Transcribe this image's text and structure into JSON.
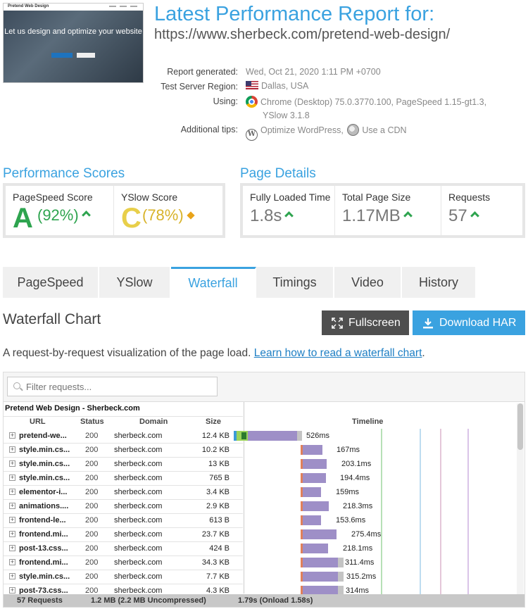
{
  "header": {
    "thumbnail": {
      "site_name": "Pretend Web Design",
      "headline": "Let us design and optimize your website"
    },
    "title": "Latest Performance Report for:",
    "url": "https://www.sherbeck.com/pretend-web-design/"
  },
  "meta": {
    "report_generated_label": "Report generated:",
    "report_generated_value": "Wed, Oct 21, 2020 1:11 PM +0700",
    "server_region_label": "Test Server Region:",
    "server_region_value": "Dallas, USA",
    "using_label": "Using:",
    "using_line1": "Chrome (Desktop) 75.0.3770.100, PageSpeed 1.15-gt1.3,",
    "using_line2": "YSlow 3.1.8",
    "tips_label": "Additional tips:",
    "tip1": "Optimize WordPress,",
    "tip2": "Use a CDN"
  },
  "performance": {
    "title": "Performance Scores",
    "pagespeed_label": "PageSpeed Score",
    "pagespeed_grade": "A",
    "pagespeed_pct": "(92%)",
    "yslow_label": "YSlow Score",
    "yslow_grade": "C",
    "yslow_pct": "(78%)"
  },
  "details": {
    "title": "Page Details",
    "loaded_label": "Fully Loaded Time",
    "loaded_value": "1.8s",
    "size_label": "Total Page Size",
    "size_value": "1.17MB",
    "requests_label": "Requests",
    "requests_value": "57"
  },
  "tabs": [
    "PageSpeed",
    "YSlow",
    "Waterfall",
    "Timings",
    "Video",
    "History"
  ],
  "active_tab": "Waterfall",
  "waterfall": {
    "title": "Waterfall Chart",
    "fullscreen_label": "Fullscreen",
    "download_label": "Download HAR",
    "description": "A request-by-request visualization of the page load.",
    "link_text": "Learn how to read a waterfall chart",
    "link_suffix": ".",
    "filter_placeholder": "Filter requests...",
    "group_title": "Pretend Web Design - Sherbeck.com",
    "columns": {
      "url": "URL",
      "status": "Status",
      "domain": "Domain",
      "size": "Size",
      "timeline": "Timeline"
    },
    "rows": [
      {
        "url": "pretend-we...",
        "status": "200",
        "domain": "sherbeck.com",
        "size": "12.4 KB",
        "time": "526ms"
      },
      {
        "url": "style.min.cs...",
        "status": "200",
        "domain": "sherbeck.com",
        "size": "10.2 KB",
        "time": "167ms"
      },
      {
        "url": "style.min.cs...",
        "status": "200",
        "domain": "sherbeck.com",
        "size": "13 KB",
        "time": "203.1ms"
      },
      {
        "url": "style.min.cs...",
        "status": "200",
        "domain": "sherbeck.com",
        "size": "765 B",
        "time": "194.4ms"
      },
      {
        "url": "elementor-i...",
        "status": "200",
        "domain": "sherbeck.com",
        "size": "3.4 KB",
        "time": "159ms"
      },
      {
        "url": "animations....",
        "status": "200",
        "domain": "sherbeck.com",
        "size": "2.9 KB",
        "time": "218.3ms"
      },
      {
        "url": "frontend-le...",
        "status": "200",
        "domain": "sherbeck.com",
        "size": "613 B",
        "time": "153.6ms"
      },
      {
        "url": "frontend.mi...",
        "status": "200",
        "domain": "sherbeck.com",
        "size": "23.7 KB",
        "time": "275.4ms"
      },
      {
        "url": "post-13.css...",
        "status": "200",
        "domain": "sherbeck.com",
        "size": "424 B",
        "time": "218.1ms"
      },
      {
        "url": "frontend.mi...",
        "status": "200",
        "domain": "sherbeck.com",
        "size": "34.3 KB",
        "time": "311.4ms"
      },
      {
        "url": "style.min.cs...",
        "status": "200",
        "domain": "sherbeck.com",
        "size": "7.7 KB",
        "time": "315.2ms"
      },
      {
        "url": "post-73.css...",
        "status": "200",
        "domain": "sherbeck.com",
        "size": "4.3 KB",
        "time": "314ms"
      }
    ],
    "footer": {
      "requests": "57 Requests",
      "size": "1.2 MB  (2.2 MB Uncompressed)",
      "time": "1.79s  (Onload 1.58s)"
    }
  }
}
